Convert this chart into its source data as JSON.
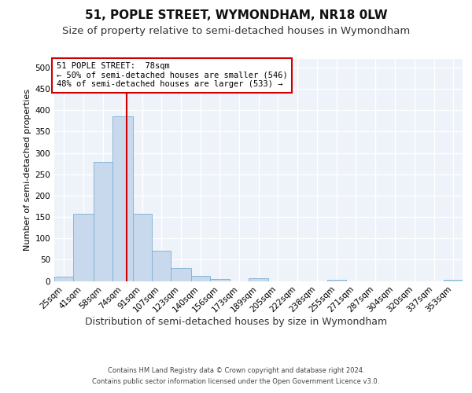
{
  "title": "51, POPLE STREET, WYMONDHAM, NR18 0LW",
  "subtitle": "Size of property relative to semi-detached houses in Wymondham",
  "xlabel": "Distribution of semi-detached houses by size in Wymondham",
  "ylabel": "Number of semi-detached properties",
  "footnote1": "Contains HM Land Registry data © Crown copyright and database right 2024.",
  "footnote2": "Contains public sector information licensed under the Open Government Licence v3.0.",
  "annotation_line1": "51 POPLE STREET:  78sqm",
  "annotation_line2": "← 50% of semi-detached houses are smaller (546)",
  "annotation_line3": "48% of semi-detached houses are larger (533) →",
  "bar_color": "#c9d9ed",
  "bar_edge_color": "#7bafd4",
  "vline_color": "#cc0000",
  "vline_x": 78,
  "categories": [
    "25sqm",
    "41sqm",
    "58sqm",
    "74sqm",
    "91sqm",
    "107sqm",
    "123sqm",
    "140sqm",
    "156sqm",
    "173sqm",
    "189sqm",
    "205sqm",
    "222sqm",
    "238sqm",
    "255sqm",
    "271sqm",
    "287sqm",
    "304sqm",
    "320sqm",
    "337sqm",
    "353sqm"
  ],
  "bin_edges": [
    17,
    33,
    50,
    66,
    83,
    99,
    115,
    132,
    148,
    165,
    181,
    197,
    214,
    230,
    247,
    263,
    279,
    296,
    312,
    329,
    345,
    361
  ],
  "values": [
    10,
    157,
    279,
    385,
    157,
    70,
    30,
    12,
    4,
    0,
    6,
    0,
    0,
    0,
    3,
    0,
    0,
    0,
    0,
    0,
    3
  ],
  "ylim": [
    0,
    520
  ],
  "yticks": [
    0,
    50,
    100,
    150,
    200,
    250,
    300,
    350,
    400,
    450,
    500
  ],
  "background_color": "#eef2f9",
  "grid_color": "#ffffff",
  "title_fontsize": 11,
  "subtitle_fontsize": 9.5,
  "ylabel_fontsize": 8,
  "xlabel_fontsize": 9,
  "tick_fontsize": 7.5,
  "footnote_fontsize": 6,
  "annotation_fontsize": 7.5
}
